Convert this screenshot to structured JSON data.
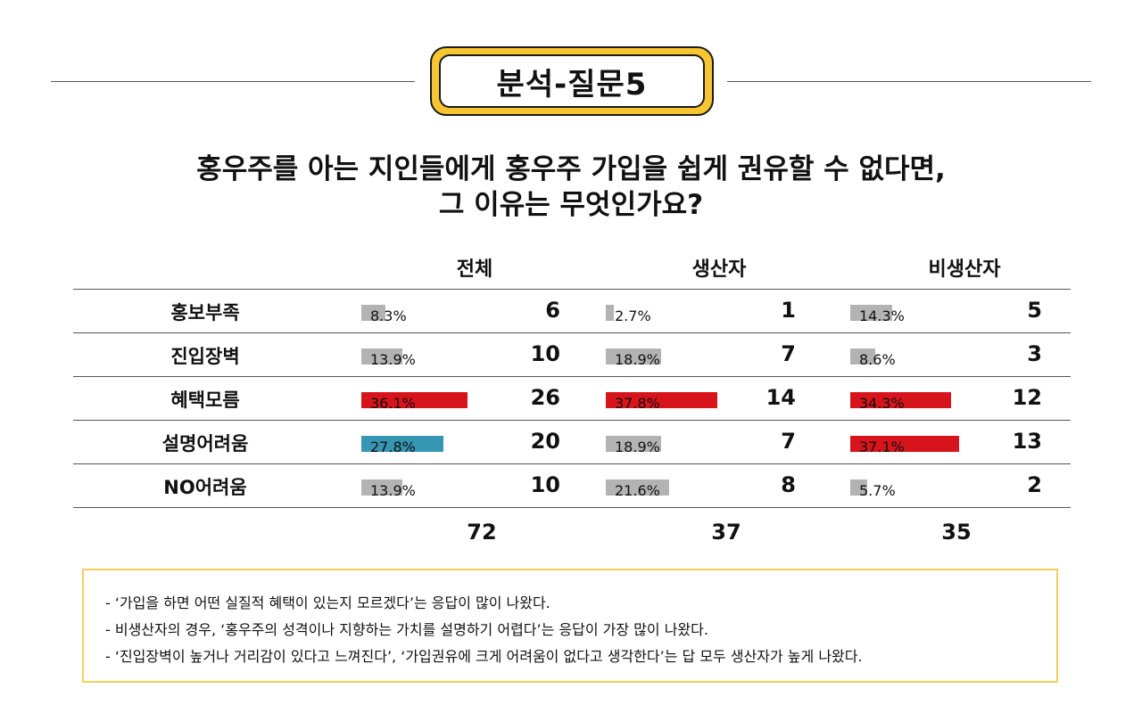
{
  "badge": {
    "title": "분석-질문5"
  },
  "question": {
    "line1": "홍우주를 아는 지인들에게 홍우주 가입을 쉽게 권유할 수 없다면,",
    "line2": "그 이유는 무엇인가요?"
  },
  "columns": [
    "전체",
    "생산자",
    "비생산자"
  ],
  "colors": {
    "gray": "#b3b3b3",
    "red": "#d7141b",
    "teal": "#3796b3",
    "badge_yellow": "#f6c531",
    "note_border": "#f3cf5c"
  },
  "rows": [
    {
      "label": "홍보부족",
      "cells": [
        {
          "pct": "8.3%",
          "value": 8.3,
          "count": "6",
          "color": "gray"
        },
        {
          "pct": "2.7%",
          "value": 2.7,
          "count": "1",
          "color": "gray"
        },
        {
          "pct": "14.3%",
          "value": 14.3,
          "count": "5",
          "color": "gray"
        }
      ]
    },
    {
      "label": "진입장벽",
      "cells": [
        {
          "pct": "13.9%",
          "value": 13.9,
          "count": "10",
          "color": "gray"
        },
        {
          "pct": "18.9%",
          "value": 18.9,
          "count": "7",
          "color": "gray"
        },
        {
          "pct": "8.6%",
          "value": 8.6,
          "count": "3",
          "color": "gray"
        }
      ]
    },
    {
      "label": "혜택모름",
      "cells": [
        {
          "pct": "36.1%",
          "value": 36.1,
          "count": "26",
          "color": "red"
        },
        {
          "pct": "37.8%",
          "value": 37.8,
          "count": "14",
          "color": "red"
        },
        {
          "pct": "34.3%",
          "value": 34.3,
          "count": "12",
          "color": "red"
        }
      ]
    },
    {
      "label": "설명어려움",
      "cells": [
        {
          "pct": "27.8%",
          "value": 27.8,
          "count": "20",
          "color": "teal"
        },
        {
          "pct": "18.9%",
          "value": 18.9,
          "count": "7",
          "color": "gray"
        },
        {
          "pct": "37.1%",
          "value": 37.1,
          "count": "13",
          "color": "red"
        }
      ]
    },
    {
      "label": "NO어려움",
      "cells": [
        {
          "pct": "13.9%",
          "value": 13.9,
          "count": "10",
          "color": "gray"
        },
        {
          "pct": "21.6%",
          "value": 21.6,
          "count": "8",
          "color": "gray"
        },
        {
          "pct": "5.7%",
          "value": 5.7,
          "count": "2",
          "color": "gray"
        }
      ]
    }
  ],
  "totals": [
    "72",
    "37",
    "35"
  ],
  "notes": [
    "- ‘가입을 하면 어떤 실질적 혜택이 있는지 모르겠다’는 응답이 많이 나왔다.",
    "- 비생산자의 경우, ‘홍우주의 성격이나 지향하는 가치를 설명하기 어렵다’는 응답이 가장 많이 나왔다.",
    "- ‘진입장벽이 높거나 거리감이 있다고 느껴진다’, ‘가입권유에 크게 어려움이 없다고 생각한다’는 답 모두 생산자가 높게 나왔다."
  ]
}
